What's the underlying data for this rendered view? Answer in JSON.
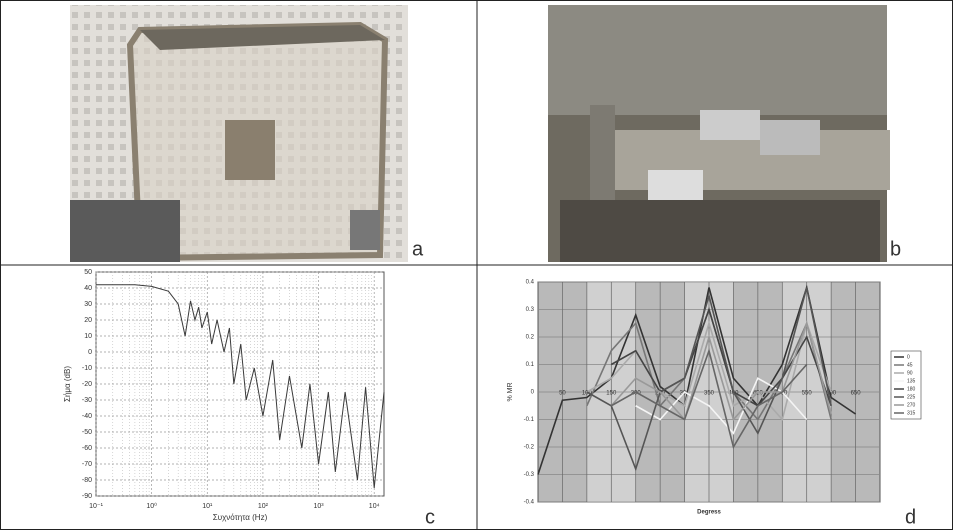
{
  "panel_letters": [
    "a",
    "b",
    "c",
    "d"
  ],
  "chart_data": [
    {
      "type": "line",
      "xscale": "log",
      "ylabel": "Σήμα (dB)",
      "xlabel": "Συχνότητα (Hz)",
      "x": [
        0.1,
        0.2,
        0.5,
        1,
        2,
        3,
        4,
        5,
        6,
        7,
        8,
        10,
        12,
        15,
        20,
        25,
        30,
        40,
        50,
        70,
        100,
        150,
        200,
        300,
        500,
        700,
        1000,
        1500,
        2000,
        3000,
        5000,
        7000,
        10000,
        15000
      ],
      "series": [
        {
          "name": "",
          "color": "#3a3a3a",
          "values": [
            42,
            42,
            42,
            41,
            38,
            30,
            10,
            32,
            20,
            28,
            15,
            25,
            5,
            20,
            0,
            15,
            -20,
            5,
            -30,
            -10,
            -40,
            -5,
            -55,
            -15,
            -60,
            -20,
            -70,
            -25,
            -75,
            -25,
            -80,
            -22,
            -85,
            -25
          ]
        }
      ],
      "xlim": [
        0.1,
        15000
      ],
      "xticks": [
        {
          "value": 0.1,
          "label": "10⁻¹"
        },
        {
          "value": 1,
          "label": "10⁰"
        },
        {
          "value": 10,
          "label": "10¹"
        },
        {
          "value": 100,
          "label": "10²"
        },
        {
          "value": 1000,
          "label": "10³"
        },
        {
          "value": 10000,
          "label": "10⁴"
        }
      ],
      "ylim": [
        -90,
        50
      ],
      "yticks": [
        -90,
        -80,
        -70,
        -60,
        -50,
        -40,
        -30,
        -20,
        -10,
        0,
        10,
        20,
        30,
        40,
        50
      ],
      "grid": true
    },
    {
      "type": "line",
      "xscale": "linear",
      "ylabel": "% MR",
      "xlabel": "Degress",
      "x": [
        0,
        50,
        100,
        150,
        200,
        250,
        300,
        350,
        400,
        450,
        500,
        550,
        600,
        650
      ],
      "series": [
        {
          "name": "0",
          "color": "#333333",
          "values": [
            -0.3,
            -0.03,
            -0.02,
            0.05,
            0.28,
            0.02,
            -0.05,
            0.38,
            0.05,
            -0.05,
            0.1,
            0.38,
            -0.02,
            -0.08
          ]
        },
        {
          "name": "45",
          "color": "#777777",
          "values": [
            null,
            null,
            -0.05,
            0.15,
            0.25,
            -0.05,
            0.05,
            0.3,
            0.0,
            -0.1,
            0.05,
            0.25,
            -0.1,
            null
          ]
        },
        {
          "name": "90",
          "color": "#aaaaaa",
          "values": [
            null,
            null,
            0.0,
            0.05,
            0.15,
            0.0,
            -0.05,
            0.25,
            -0.05,
            0.0,
            -0.1,
            0.25,
            0.0,
            null
          ]
        },
        {
          "name": "135",
          "color": "#f4f4f4",
          "values": [
            null,
            null,
            null,
            null,
            -0.05,
            -0.1,
            0.0,
            -0.05,
            -0.15,
            0.05,
            0.0,
            -0.1,
            null,
            null
          ]
        },
        {
          "name": "180",
          "color": "#444444",
          "values": [
            null,
            null,
            null,
            0.1,
            0.15,
            0.0,
            0.05,
            0.3,
            0.0,
            -0.05,
            0.05,
            0.2,
            -0.05,
            null
          ]
        },
        {
          "name": "225",
          "color": "#555555",
          "values": [
            null,
            null,
            0.0,
            -0.05,
            -0.28,
            0.0,
            0.05,
            0.35,
            0.0,
            -0.15,
            0.05,
            0.38,
            -0.05,
            null
          ]
        },
        {
          "name": "270",
          "color": "#999999",
          "values": [
            null,
            null,
            null,
            -0.05,
            0.05,
            0.0,
            -0.1,
            0.2,
            -0.1,
            0.0,
            0.0,
            0.25,
            -0.08,
            null
          ]
        },
        {
          "name": "315",
          "color": "#666666",
          "values": [
            null,
            null,
            null,
            -0.05,
            0.0,
            -0.05,
            -0.1,
            0.15,
            -0.2,
            -0.05,
            0.0,
            0.1,
            null,
            null
          ]
        }
      ],
      "xlim": [
        0,
        700
      ],
      "xticks": [
        50,
        100,
        150,
        200,
        250,
        300,
        350,
        400,
        450,
        500,
        550,
        600,
        650
      ],
      "ylim": [
        -0.4,
        0.4
      ],
      "yticks": [
        -0.4,
        -0.3,
        -0.2,
        -0.1,
        0,
        0.1,
        0.2,
        0.3,
        0.4
      ],
      "grid": true,
      "legend": "right"
    }
  ]
}
